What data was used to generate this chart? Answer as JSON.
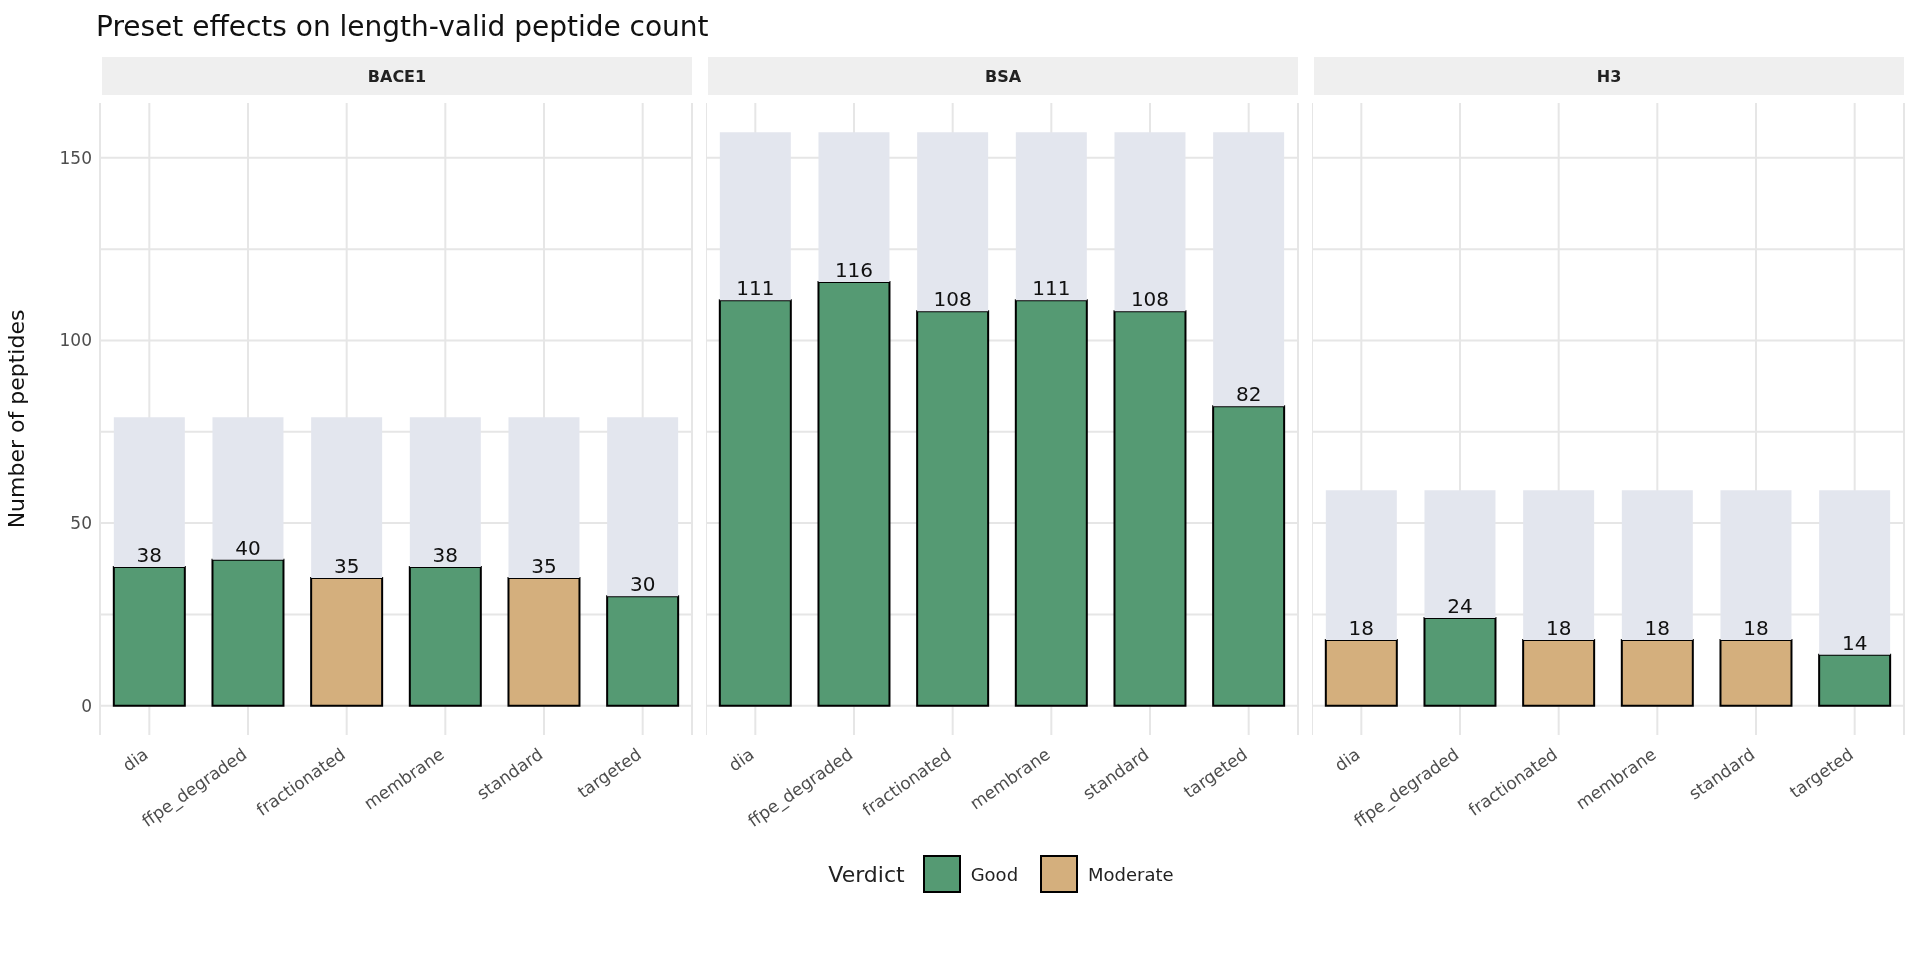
{
  "chart_data": [
    {
      "type": "bar",
      "title": "Preset effects on length-valid peptide count",
      "subtitle": "BACE1",
      "ylabel": "Number of peptides",
      "categories": [
        "dia",
        "ffpe_degraded",
        "fractionated",
        "membrane",
        "standard",
        "targeted"
      ],
      "stacked": true,
      "grid": true,
      "legend": false,
      "ylim": [
        -8,
        165
      ],
      "yticks": [
        0,
        {
          "value": 25,
          "label": null
        },
        50,
        {
          "value": 75,
          "label": null
        },
        100,
        {
          "value": 125,
          "label": null
        },
        150
      ],
      "series": [
        {
          "color": "#559a73",
          "values": [
            38,
            40,
            null,
            38,
            null,
            30
          ],
          "value_labels": [
            "38",
            "40",
            null,
            "38",
            null,
            "30"
          ]
        },
        {
          "color": "#d4af7d",
          "values": [
            null,
            null,
            35,
            null,
            35,
            null
          ],
          "value_labels": [
            null,
            null,
            "35",
            null,
            "35",
            null
          ]
        },
        {
          "color": "#e3e6ee",
          "values": [
            41,
            39,
            44,
            41,
            44,
            49
          ]
        }
      ]
    },
    {
      "type": "bar",
      "subtitle": "BSA",
      "categories": [
        "dia",
        "ffpe_degraded",
        "fractionated",
        "membrane",
        "standard",
        "targeted"
      ],
      "stacked": true,
      "grid": true,
      "legend": "bottom",
      "legend_title": "Verdict",
      "tick_labels": "x",
      "ylim": [
        -8,
        165
      ],
      "yticks": [
        0,
        {
          "value": 25,
          "label": null
        },
        50,
        {
          "value": 75,
          "label": null
        },
        100,
        {
          "value": 125,
          "label": null
        },
        150
      ],
      "series": [
        {
          "name": "Good",
          "color": "#559a73",
          "values": [
            111,
            116,
            108,
            111,
            108,
            82
          ],
          "value_labels": [
            "111",
            "116",
            "108",
            "111",
            "108",
            "82"
          ]
        },
        {
          "name": "Moderate",
          "color": "#d4af7d",
          "values": [
            null,
            null,
            null,
            null,
            null,
            null
          ],
          "value_labels": [
            null,
            null,
            null,
            null,
            null,
            null
          ]
        },
        {
          "color": "#e3e6ee",
          "values": [
            46,
            41,
            49,
            46,
            49,
            75
          ]
        }
      ]
    },
    {
      "type": "bar",
      "subtitle": "H3",
      "categories": [
        "dia",
        "ffpe_degraded",
        "fractionated",
        "membrane",
        "standard",
        "targeted"
      ],
      "stacked": true,
      "grid": true,
      "legend": false,
      "tick_labels": "x",
      "ylim": [
        -8,
        165
      ],
      "yticks": [
        0,
        {
          "value": 25,
          "label": null
        },
        50,
        {
          "value": 75,
          "label": null
        },
        100,
        {
          "value": 125,
          "label": null
        },
        150
      ],
      "series": [
        {
          "color": "#559a73",
          "values": [
            null,
            24,
            null,
            null,
            null,
            14
          ],
          "value_labels": [
            null,
            "24",
            null,
            null,
            null,
            "14"
          ]
        },
        {
          "color": "#d4af7d",
          "values": [
            18,
            null,
            18,
            18,
            18,
            null
          ],
          "value_labels": [
            "18",
            null,
            "18",
            "18",
            "18",
            null
          ]
        },
        {
          "color": "#e3e6ee",
          "values": [
            41,
            35,
            41,
            41,
            41,
            45
          ]
        }
      ]
    }
  ]
}
